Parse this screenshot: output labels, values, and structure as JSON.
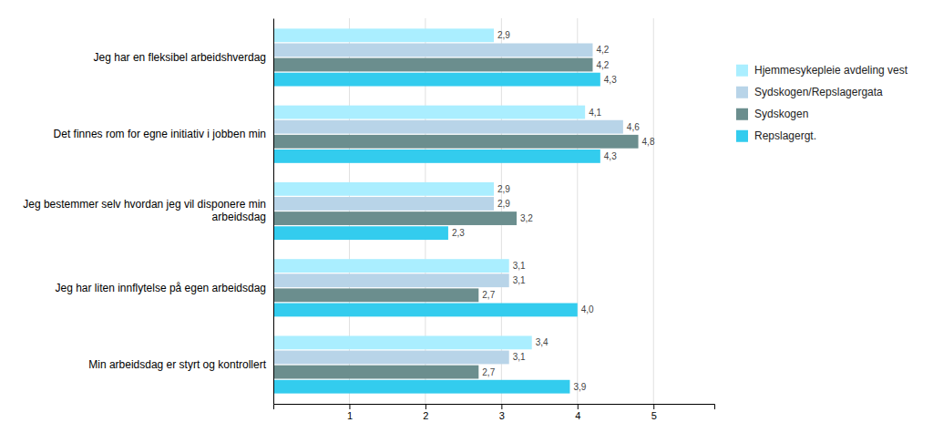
{
  "chart_data": {
    "type": "bar",
    "orientation": "horizontal",
    "categories": [
      "Jeg har en fleksibel arbeidshverdag",
      "Det finnes rom for egne initiativ i jobben min",
      "Jeg bestemmer selv hvordan jeg vil disponere min\narbeidsdag",
      "Jeg har liten innflytelse på egen arbeidsdag",
      "Min arbeidsdag er styrt og kontrollert"
    ],
    "series": [
      {
        "name": "Hjemmesykepleie avdeling vest",
        "color": "#aaeeff",
        "values": [
          2.9,
          4.1,
          2.9,
          3.1,
          3.4
        ],
        "value_labels": [
          "2,9",
          "4,1",
          "2,9",
          "3,1",
          "3,4"
        ]
      },
      {
        "name": "Sydskogen/Repslagergata",
        "color": "#b8d4e8",
        "values": [
          4.2,
          4.6,
          2.9,
          3.1,
          3.1
        ],
        "value_labels": [
          "4,2",
          "4,6",
          "2,9",
          "3,1",
          "3,1"
        ]
      },
      {
        "name": "Sydskogen",
        "color": "#6b8e8e",
        "values": [
          4.2,
          4.8,
          3.2,
          2.7,
          2.7
        ],
        "value_labels": [
          "4,2",
          "4,8",
          "3,2",
          "2,7",
          "2,7"
        ]
      },
      {
        "name": "Repslagergt.",
        "color": "#33ccee",
        "values": [
          4.3,
          4.3,
          2.3,
          4.0,
          3.9
        ],
        "value_labels": [
          "4,3",
          "4,3",
          "2,3",
          "4,0",
          "3,9"
        ]
      }
    ],
    "xlim": [
      0,
      5.8
    ],
    "xticks": [
      1,
      2,
      3,
      4,
      5
    ],
    "grid": true,
    "legend": "right",
    "data_labels": true
  }
}
